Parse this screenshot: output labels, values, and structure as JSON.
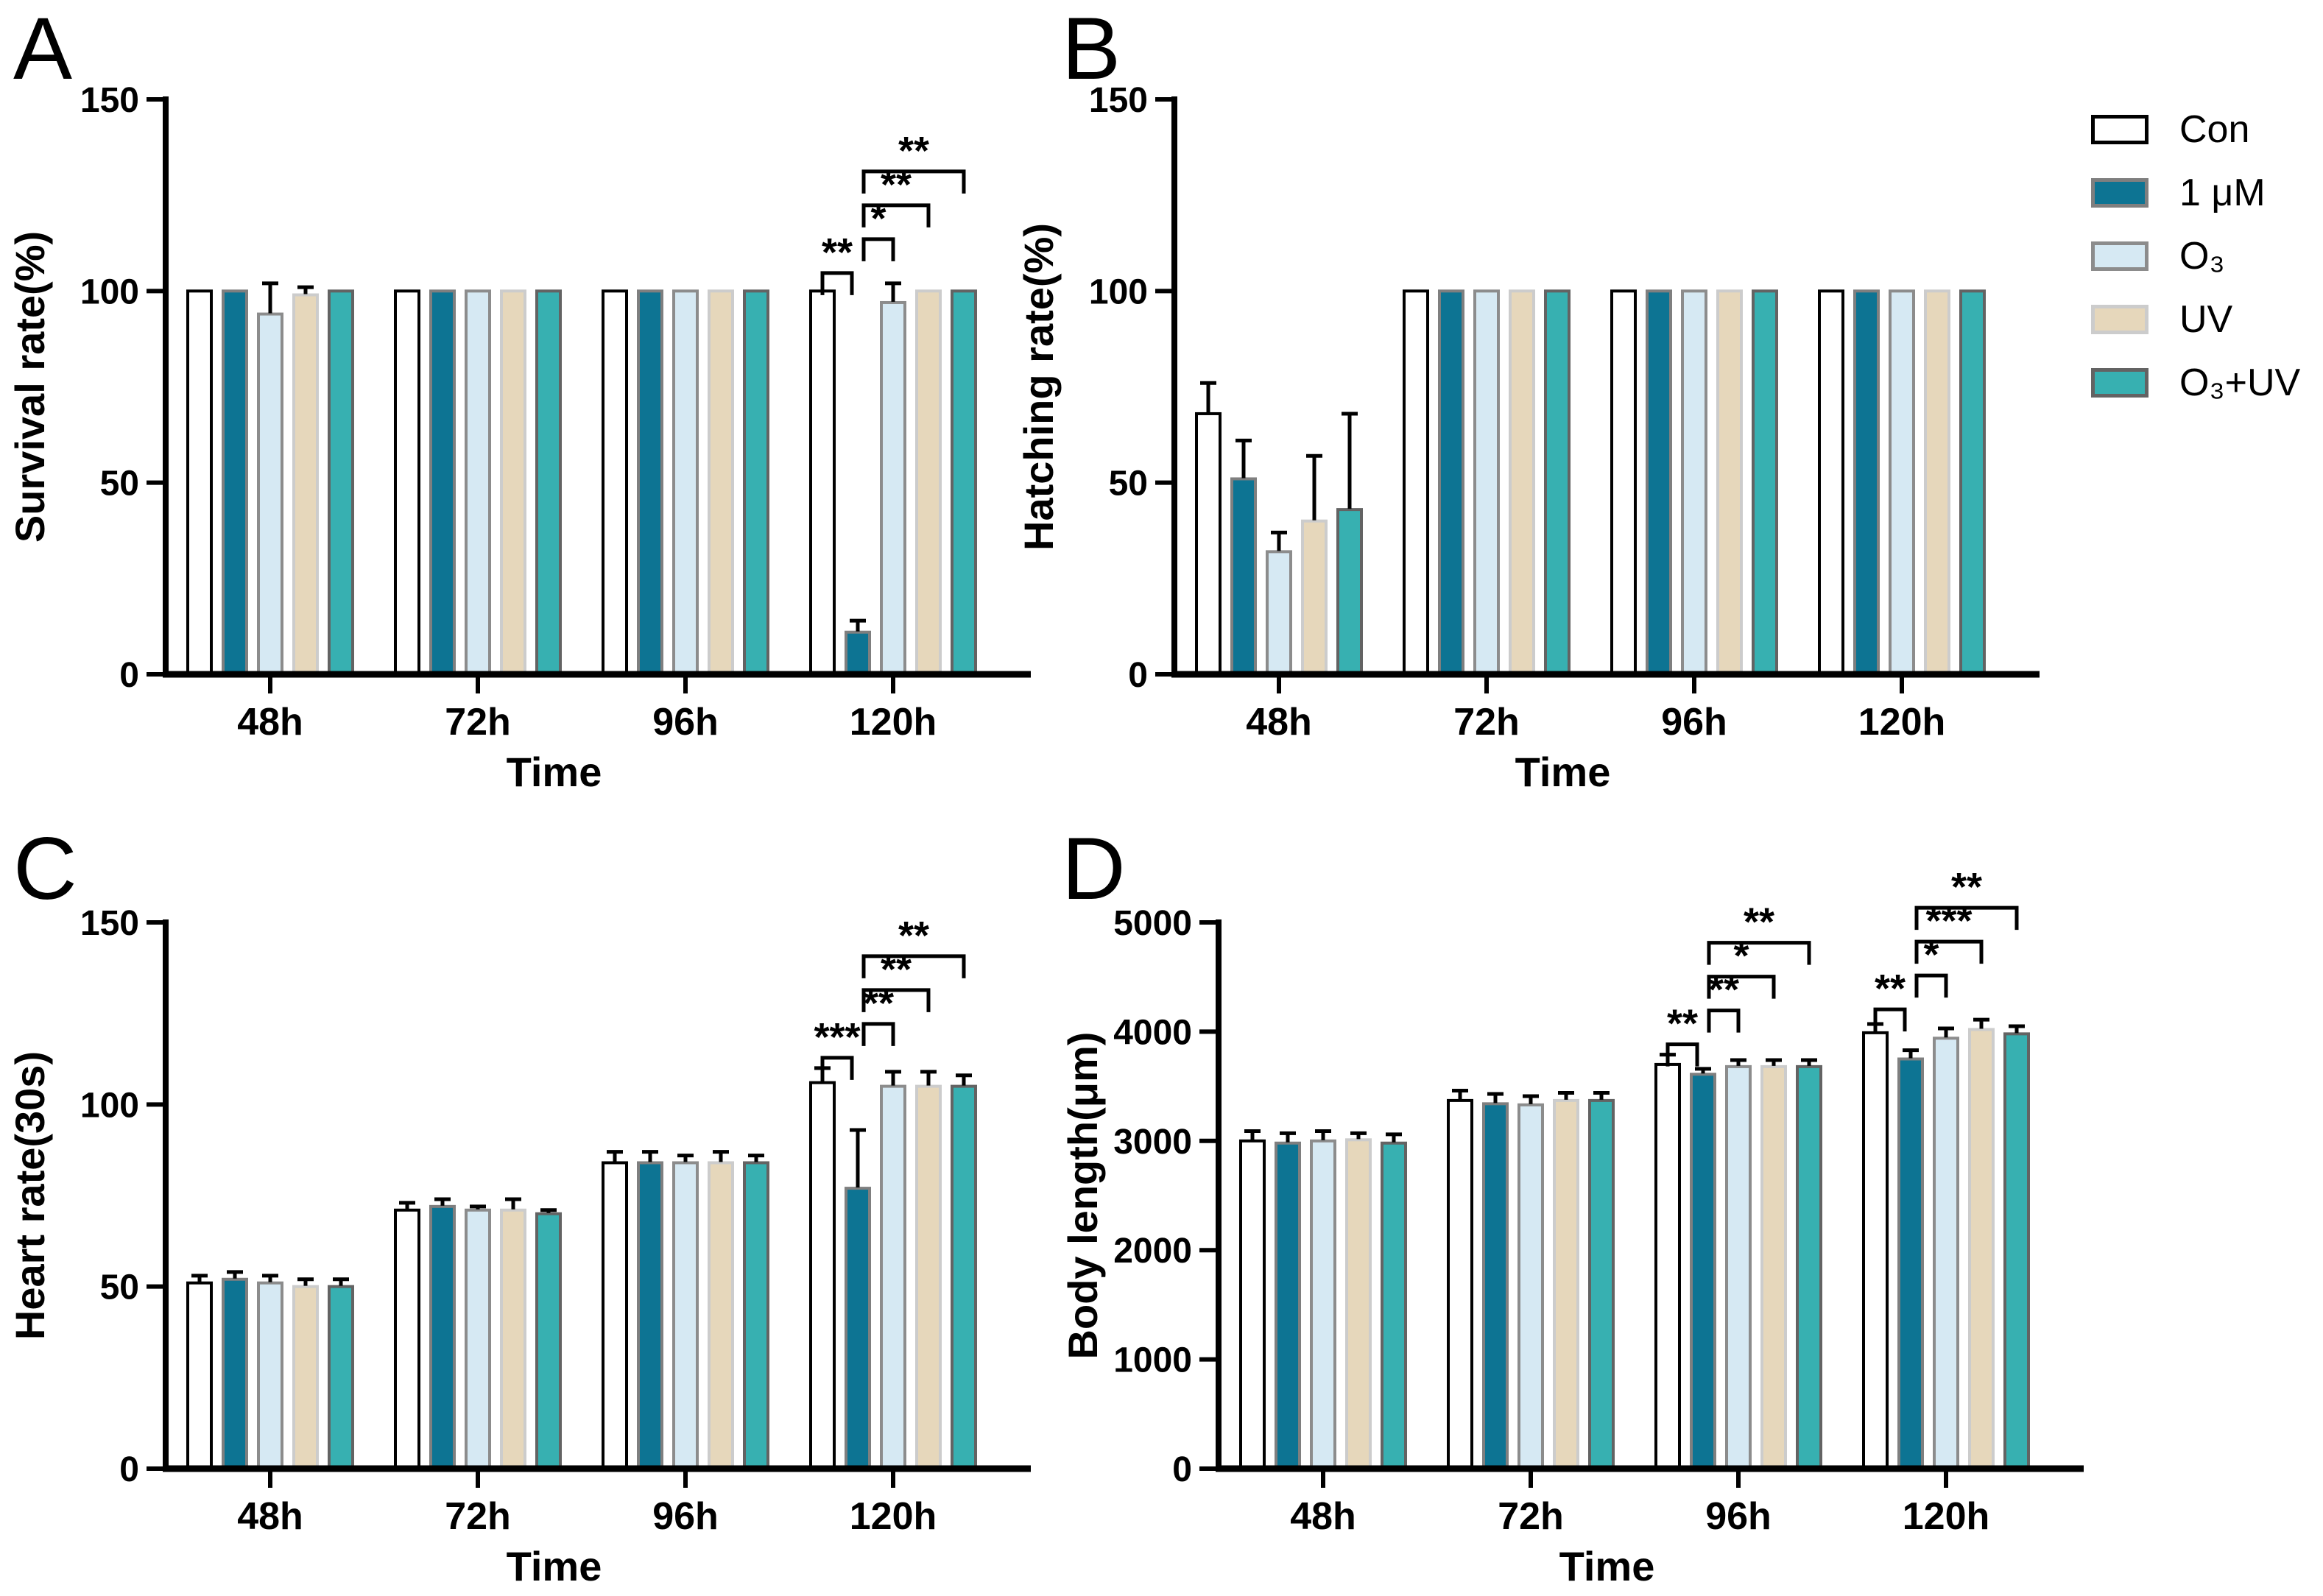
{
  "figure": {
    "background": "#ffffff",
    "legend": {
      "position": "top-right",
      "items": [
        {
          "key": "con",
          "label": "Con"
        },
        {
          "key": "um1",
          "label": "1 μM"
        },
        {
          "key": "o3",
          "label": "O₃"
        },
        {
          "key": "uv",
          "label": "UV"
        },
        {
          "key": "o3uv",
          "label": "O₃+UV"
        }
      ]
    },
    "colors": {
      "con": {
        "fill": "#ffffff",
        "stroke": "#000000"
      },
      "um1": {
        "fill": "#0d7493",
        "stroke": "#7f7f7f"
      },
      "o3": {
        "fill": "#d6e9f3",
        "stroke": "#8c8c8c"
      },
      "uv": {
        "fill": "#e6d7bb",
        "stroke": "#cccccc"
      },
      "o3uv": {
        "fill": "#37b0b1",
        "stroke": "#636363"
      }
    }
  },
  "chart_data": [
    {
      "panel_label": "A",
      "type": "bar",
      "title": "",
      "ylabel": "Survival rate(%)",
      "xlabel": "Time",
      "ylim": [
        0,
        150
      ],
      "yticks": [
        0,
        50,
        100,
        150
      ],
      "grid": false,
      "categories": [
        "48h",
        "72h",
        "96h",
        "120h"
      ],
      "series": [
        {
          "name": "Con",
          "key": "con",
          "values": [
            100,
            100,
            100,
            100
          ],
          "errors": [
            0,
            0,
            0,
            0
          ]
        },
        {
          "name": "1 μM",
          "key": "um1",
          "values": [
            100,
            100,
            100,
            11
          ],
          "errors": [
            0,
            0,
            0,
            3
          ]
        },
        {
          "name": "O₃",
          "key": "o3",
          "values": [
            94,
            100,
            100,
            97
          ],
          "errors": [
            8,
            0,
            0,
            5
          ]
        },
        {
          "name": "UV",
          "key": "uv",
          "values": [
            99,
            100,
            100,
            100
          ],
          "errors": [
            2,
            0,
            0,
            0
          ]
        },
        {
          "name": "O₃+UV",
          "key": "o3uv",
          "values": [
            100,
            100,
            100,
            100
          ],
          "errors": [
            0,
            0,
            0,
            0
          ]
        }
      ],
      "significance": [
        {
          "category": "120h",
          "brackets": [
            {
              "from": "Con",
              "to": "1 μM",
              "label": "**"
            },
            {
              "from": "1 μM",
              "to": "O₃",
              "label": "*"
            },
            {
              "from": "1 μM",
              "to": "UV",
              "label": "**"
            },
            {
              "from": "1 μM",
              "to": "O₃+UV",
              "label": "**"
            }
          ]
        }
      ]
    },
    {
      "panel_label": "B",
      "type": "bar",
      "title": "",
      "ylabel": "Hatching rate(%)",
      "xlabel": "Time",
      "ylim": [
        0,
        150
      ],
      "yticks": [
        0,
        50,
        100,
        150
      ],
      "grid": false,
      "categories": [
        "48h",
        "72h",
        "96h",
        "120h"
      ],
      "series": [
        {
          "name": "Con",
          "key": "con",
          "values": [
            68,
            100,
            100,
            100
          ],
          "errors": [
            8,
            0,
            0,
            0
          ]
        },
        {
          "name": "1 μM",
          "key": "um1",
          "values": [
            51,
            100,
            100,
            100
          ],
          "errors": [
            10,
            0,
            0,
            0
          ]
        },
        {
          "name": "O₃",
          "key": "o3",
          "values": [
            32,
            100,
            100,
            100
          ],
          "errors": [
            5,
            0,
            0,
            0
          ]
        },
        {
          "name": "UV",
          "key": "uv",
          "values": [
            40,
            100,
            100,
            100
          ],
          "errors": [
            17,
            0,
            0,
            0
          ]
        },
        {
          "name": "O₃+UV",
          "key": "o3uv",
          "values": [
            43,
            100,
            100,
            100
          ],
          "errors": [
            25,
            0,
            0,
            0
          ]
        }
      ],
      "significance": []
    },
    {
      "panel_label": "C",
      "type": "bar",
      "title": "",
      "ylabel": "Heart rate(30s)",
      "xlabel": "Time",
      "ylim": [
        0,
        150
      ],
      "yticks": [
        0,
        50,
        100,
        150
      ],
      "grid": false,
      "categories": [
        "48h",
        "72h",
        "96h",
        "120h"
      ],
      "series": [
        {
          "name": "Con",
          "key": "con",
          "values": [
            51,
            71,
            84,
            106
          ],
          "errors": [
            2,
            2,
            3,
            4
          ]
        },
        {
          "name": "1 μM",
          "key": "um1",
          "values": [
            52,
            72,
            84,
            77
          ],
          "errors": [
            2,
            2,
            3,
            16
          ]
        },
        {
          "name": "O₃",
          "key": "o3",
          "values": [
            51,
            71,
            84,
            105
          ],
          "errors": [
            2,
            1,
            2,
            4
          ]
        },
        {
          "name": "UV",
          "key": "uv",
          "values": [
            50,
            71,
            84,
            105
          ],
          "errors": [
            2,
            3,
            3,
            4
          ]
        },
        {
          "name": "O₃+UV",
          "key": "o3uv",
          "values": [
            50,
            70,
            84,
            105
          ],
          "errors": [
            2,
            1,
            2,
            3
          ]
        }
      ],
      "significance": [
        {
          "category": "120h",
          "brackets": [
            {
              "from": "Con",
              "to": "1 μM",
              "label": "***"
            },
            {
              "from": "1 μM",
              "to": "O₃",
              "label": "**"
            },
            {
              "from": "1 μM",
              "to": "UV",
              "label": "**"
            },
            {
              "from": "1 μM",
              "to": "O₃+UV",
              "label": "**"
            }
          ]
        }
      ]
    },
    {
      "panel_label": "D",
      "type": "bar",
      "title": "",
      "ylabel": "Body length(μm)",
      "xlabel": "Time",
      "ylim": [
        0,
        5000
      ],
      "yticks": [
        0,
        1000,
        2000,
        3000,
        4000,
        5000
      ],
      "grid": false,
      "categories": [
        "48h",
        "72h",
        "96h",
        "120h"
      ],
      "series": [
        {
          "name": "Con",
          "key": "con",
          "values": [
            3000,
            3370,
            3700,
            3990
          ],
          "errors": [
            90,
            90,
            90,
            80
          ]
        },
        {
          "name": "1 μM",
          "key": "um1",
          "values": [
            2980,
            3340,
            3610,
            3750
          ],
          "errors": [
            90,
            90,
            50,
            80
          ]
        },
        {
          "name": "O₃",
          "key": "o3",
          "values": [
            3000,
            3330,
            3680,
            3940
          ],
          "errors": [
            90,
            80,
            60,
            90
          ]
        },
        {
          "name": "UV",
          "key": "uv",
          "values": [
            3010,
            3370,
            3680,
            4020
          ],
          "errors": [
            60,
            70,
            60,
            90
          ]
        },
        {
          "name": "O₃+UV",
          "key": "o3uv",
          "values": [
            2980,
            3370,
            3680,
            3980
          ],
          "errors": [
            80,
            70,
            60,
            70
          ]
        }
      ],
      "significance": [
        {
          "category": "96h",
          "brackets": [
            {
              "from": "Con",
              "to": "1 μM",
              "label": "**"
            },
            {
              "from": "1 μM",
              "to": "O₃",
              "label": "**"
            },
            {
              "from": "1 μM",
              "to": "UV",
              "label": "*"
            },
            {
              "from": "1 μM",
              "to": "O₃+UV",
              "label": "**"
            }
          ]
        },
        {
          "category": "120h",
          "brackets": [
            {
              "from": "Con",
              "to": "1 μM",
              "label": "**"
            },
            {
              "from": "1 μM",
              "to": "O₃",
              "label": "*"
            },
            {
              "from": "1 μM",
              "to": "UV",
              "label": "***"
            },
            {
              "from": "1 μM",
              "to": "O₃+UV",
              "label": "**"
            }
          ]
        }
      ]
    }
  ]
}
